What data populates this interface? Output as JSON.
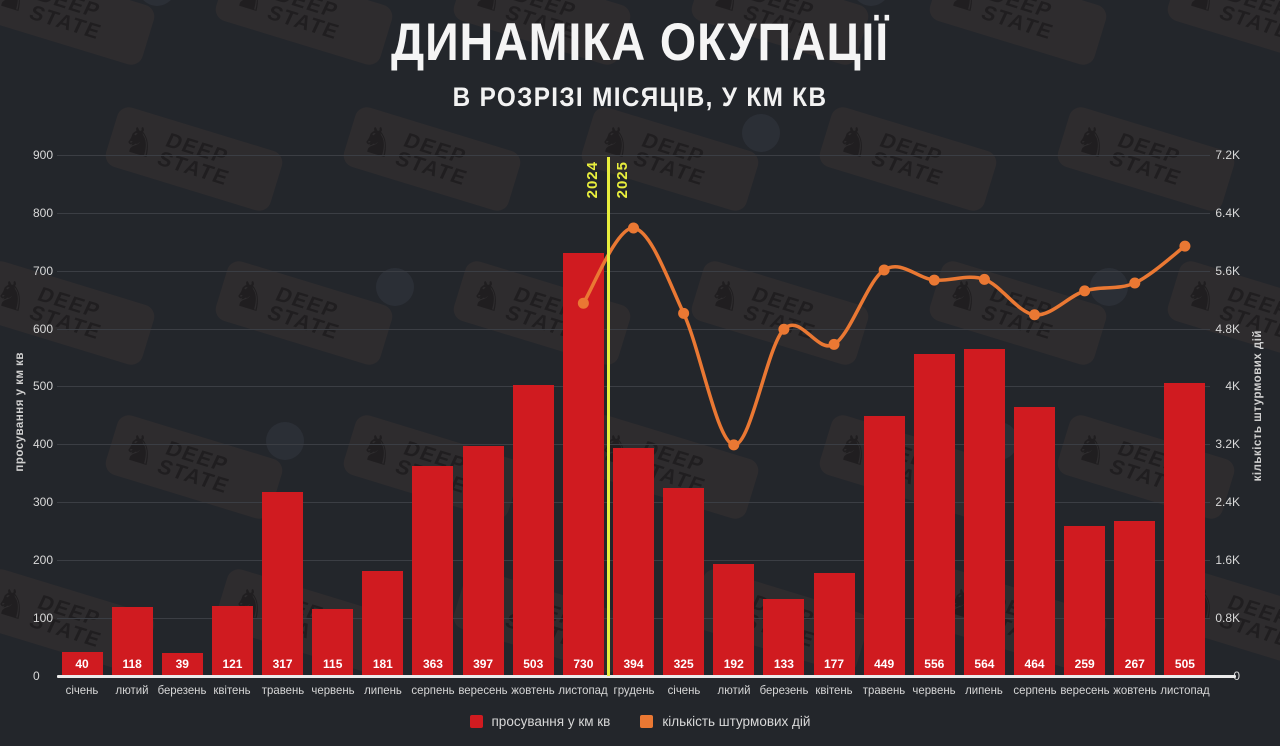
{
  "title": "ДИНАМІКА ОКУПАЦІЇ",
  "subtitle": "В РОЗРІЗІ МІСЯЦІВ, У КМ КВ",
  "watermark": {
    "line1": "DEEP",
    "line2": "STATE"
  },
  "year_divider": {
    "left_label": "2024",
    "right_label": "2025",
    "color": "#e8ee3d",
    "after_category_index": 10
  },
  "chart_data": {
    "type": "bar+line",
    "categories": [
      "січень",
      "лютий",
      "березень",
      "квітень",
      "травень",
      "червень",
      "липень",
      "серпень",
      "вересень",
      "жовтень",
      "листопад",
      "грудень",
      "січень",
      "лютий",
      "березень",
      "квітень",
      "травень",
      "червень",
      "липень",
      "серпень",
      "вересень",
      "жовтень",
      "листопад"
    ],
    "series": [
      {
        "name": "просування у км кв",
        "type": "bar",
        "axis": "left",
        "color": "#d01b20",
        "values": [
          40,
          118,
          39,
          121,
          317,
          115,
          181,
          363,
          397,
          503,
          730,
          394,
          325,
          192,
          133,
          177,
          449,
          556,
          564,
          464,
          259,
          267,
          505
        ]
      },
      {
        "name": "кількість штурмових дій",
        "type": "line",
        "axis": "right",
        "color": "#ea7833",
        "values": [
          null,
          null,
          null,
          null,
          null,
          null,
          null,
          null,
          null,
          null,
          5150,
          6190,
          5010,
          3190,
          4790,
          4580,
          5610,
          5470,
          5480,
          4990,
          5320,
          5430,
          5940
        ]
      }
    ],
    "left_axis": {
      "label": "просування у км кв",
      "min": 0,
      "max": 900,
      "ticks": [
        "0",
        "100",
        "200",
        "300",
        "400",
        "500",
        "600",
        "700",
        "800",
        "900"
      ]
    },
    "right_axis": {
      "label": "кількість штурмових дій",
      "min": 0,
      "max": 7200,
      "ticks": [
        "0",
        "0.8K",
        "1.6K",
        "2.4K",
        "3.2K",
        "4K",
        "4.8K",
        "5.6K",
        "6.4K",
        "7.2K"
      ]
    },
    "grid": "horizontal",
    "legend_position": "bottom",
    "bar_value_labels": "inside-bottom"
  },
  "colors": {
    "background": "#23262b",
    "gridline": "#3b3e44",
    "axis_line": "#ebebeb",
    "tick_text": "#d9d9d9",
    "month_text": "#d6d6d6",
    "value_label_text": "#ffffff",
    "title_text": "#f5f5f5"
  }
}
